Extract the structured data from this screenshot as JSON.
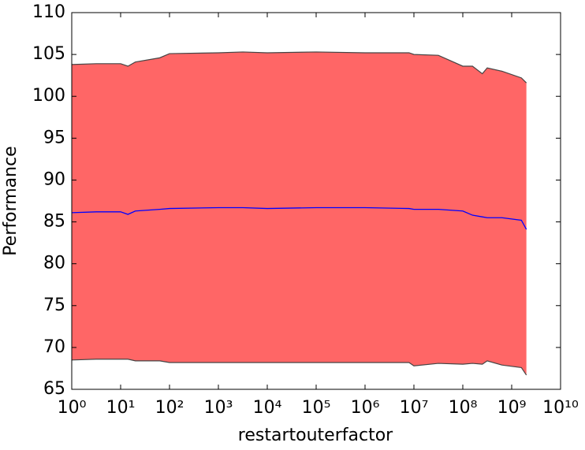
{
  "chart_data": {
    "type": "band-line",
    "xlabel": "restartouterfactor",
    "ylabel": "Performance",
    "xscale": "log",
    "x": [
      1,
      3.16,
      10,
      14.1,
      20,
      63.1,
      100,
      1000,
      3162,
      10000,
      100000,
      1000000,
      7940000,
      10000000,
      31600000,
      100000000,
      158000000,
      251000000,
      316000000,
      631000000,
      1580000000,
      2000000000
    ],
    "mean": {
      "color": "#0000ff",
      "values": [
        86.1,
        86.2,
        86.2,
        85.9,
        86.3,
        86.5,
        86.6,
        86.7,
        86.7,
        86.6,
        86.7,
        86.7,
        86.6,
        86.5,
        86.5,
        86.3,
        85.8,
        85.6,
        85.5,
        85.5,
        85.2,
        84.1
      ]
    },
    "band": {
      "color": "#ff6666",
      "edge_color": "#444444",
      "upper": [
        103.8,
        103.9,
        103.9,
        103.6,
        104.1,
        104.6,
        105.1,
        105.2,
        105.3,
        105.2,
        105.3,
        105.2,
        105.2,
        105.0,
        104.9,
        103.6,
        103.6,
        102.7,
        103.4,
        103.0,
        102.2,
        101.6
      ],
      "lower": [
        68.5,
        68.6,
        68.6,
        68.6,
        68.4,
        68.4,
        68.2,
        68.2,
        68.2,
        68.2,
        68.2,
        68.2,
        68.2,
        67.8,
        68.1,
        68.0,
        68.1,
        68.0,
        68.4,
        67.9,
        67.6,
        66.7
      ]
    },
    "xlim": [
      1,
      10000000000
    ],
    "ylim": [
      65,
      110
    ],
    "xticks": [
      {
        "value": 1,
        "label": "10⁰"
      },
      {
        "value": 10,
        "label": "10¹"
      },
      {
        "value": 100,
        "label": "10²"
      },
      {
        "value": 1000,
        "label": "10³"
      },
      {
        "value": 10000,
        "label": "10⁴"
      },
      {
        "value": 100000,
        "label": "10⁵"
      },
      {
        "value": 1000000,
        "label": "10⁶"
      },
      {
        "value": 10000000,
        "label": "10⁷"
      },
      {
        "value": 100000000,
        "label": "10⁸"
      },
      {
        "value": 1000000000,
        "label": "10⁹"
      },
      {
        "value": 10000000000,
        "label": "10¹⁰"
      }
    ],
    "yticks": [
      65,
      70,
      75,
      80,
      85,
      90,
      95,
      100,
      105,
      110
    ]
  }
}
